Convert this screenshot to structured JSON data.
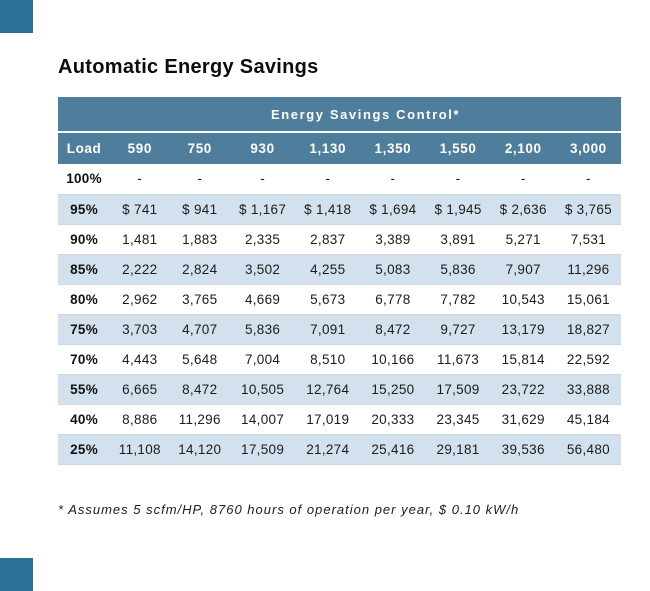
{
  "chart_data": {
    "type": "table",
    "title": "Automatic Energy Savings",
    "group_header": "Energy Savings Control*",
    "columns": [
      "Load",
      "590",
      "750",
      "930",
      "1,130",
      "1,350",
      "1,550",
      "2,100",
      "3,000"
    ],
    "rows": [
      {
        "load": "100%",
        "values": [
          "-",
          "-",
          "-",
          "-",
          "-",
          "-",
          "-",
          "-"
        ]
      },
      {
        "load": "95%",
        "values": [
          "$ 741",
          "$ 941",
          "$ 1,167",
          "$ 1,418",
          "$ 1,694",
          "$ 1,945",
          "$ 2,636",
          "$ 3,765"
        ]
      },
      {
        "load": "90%",
        "values": [
          "1,481",
          "1,883",
          "2,335",
          "2,837",
          "3,389",
          "3,891",
          "5,271",
          "7,531"
        ]
      },
      {
        "load": "85%",
        "values": [
          "2,222",
          "2,824",
          "3,502",
          "4,255",
          "5,083",
          "5,836",
          "7,907",
          "11,296"
        ]
      },
      {
        "load": "80%",
        "values": [
          "2,962",
          "3,765",
          "4,669",
          "5,673",
          "6,778",
          "7,782",
          "10,543",
          "15,061"
        ]
      },
      {
        "load": "75%",
        "values": [
          "3,703",
          "4,707",
          "5,836",
          "7,091",
          "8,472",
          "9,727",
          "13,179",
          "18,827"
        ]
      },
      {
        "load": "70%",
        "values": [
          "4,443",
          "5,648",
          "7,004",
          "8,510",
          "10,166",
          "11,673",
          "15,814",
          "22,592"
        ]
      },
      {
        "load": "55%",
        "values": [
          "6,665",
          "8,472",
          "10,505",
          "12,764",
          "15,250",
          "17,509",
          "23,722",
          "33,888"
        ]
      },
      {
        "load": "40%",
        "values": [
          "8,886",
          "11,296",
          "14,007",
          "17,019",
          "20,333",
          "23,345",
          "31,629",
          "45,184"
        ]
      },
      {
        "load": "25%",
        "values": [
          "11,108",
          "14,120",
          "17,509",
          "21,274",
          "25,416",
          "29,181",
          "39,536",
          "56,480"
        ]
      }
    ],
    "footnote": "* Assumes 5 scfm/HP, 8760 hours of operation per year, $ 0.10 kW/h"
  },
  "colors": {
    "header_bg": "#4e7e9b",
    "header_text": "#ffffff",
    "row_alt_bg": "#d2e1ed",
    "row_border": "#ccd6df",
    "corner_square": "#2c7097",
    "body_text": "#1c1c1c"
  }
}
